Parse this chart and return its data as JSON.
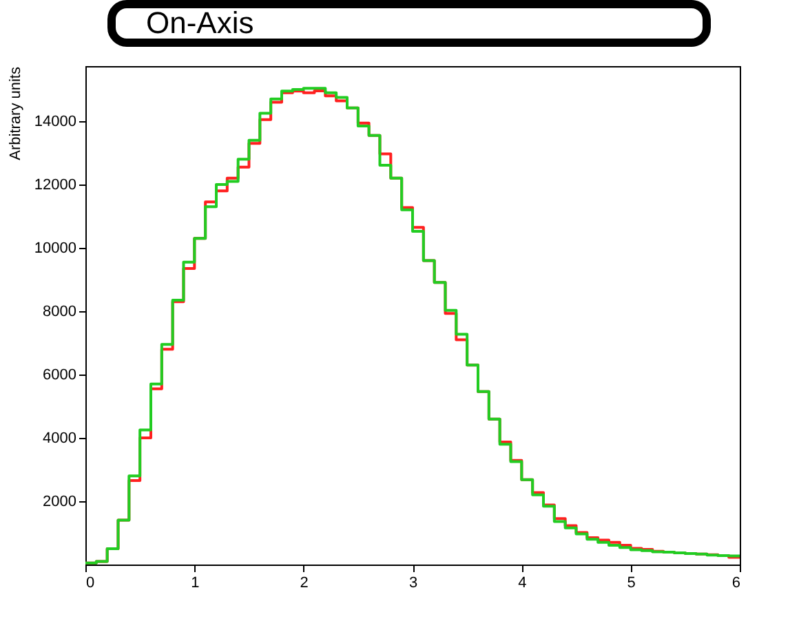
{
  "chart_data": {
    "type": "histogram",
    "title": "On-Axis",
    "ylabel": "Arbitrary units",
    "bins": [
      0,
      0.1,
      0.2,
      0.3,
      0.4,
      0.5,
      0.6,
      0.7,
      0.8,
      0.9,
      1,
      1.1,
      1.2,
      1.3,
      1.4,
      1.5,
      1.6,
      1.7,
      1.8,
      1.9,
      2,
      2.1,
      2.2,
      2.3,
      2.4,
      2.5,
      2.6,
      2.7,
      2.8,
      2.9,
      3,
      3.1,
      3.2,
      3.3,
      3.4,
      3.5,
      3.6,
      3.7,
      3.8,
      3.9,
      4,
      4.1,
      4.2,
      4.3,
      4.4,
      4.5,
      4.6,
      4.7,
      4.8,
      4.9,
      5,
      5.1,
      5.2,
      5.3,
      5.4,
      5.5,
      5.6,
      5.7,
      5.8,
      5.9,
      6
    ],
    "series": [
      {
        "color": "#ff2020",
        "values": [
          50,
          100,
          500,
          1400,
          2650,
          4000,
          5550,
          6800,
          8300,
          9350,
          10300,
          11450,
          11800,
          12200,
          12550,
          13300,
          14050,
          14600,
          14900,
          14950,
          14900,
          14960,
          14800,
          14640,
          14420,
          13940,
          13550,
          12970,
          12200,
          11270,
          10650,
          9600,
          8910,
          7930,
          7100,
          6300,
          5460,
          4590,
          3870,
          3290,
          2680,
          2270,
          1880,
          1450,
          1230,
          1010,
          850,
          770,
          700,
          610,
          510,
          480,
          420,
          390,
          370,
          350,
          330,
          310,
          280,
          230
        ]
      },
      {
        "color": "#22cc22",
        "values": [
          50,
          100,
          500,
          1400,
          2800,
          4250,
          5700,
          6950,
          8350,
          9550,
          10300,
          11300,
          12000,
          12100,
          12800,
          13400,
          14250,
          14700,
          14950,
          15000,
          15040,
          15040,
          14900,
          14750,
          14420,
          13850,
          13550,
          12610,
          12200,
          11200,
          10520,
          9600,
          8910,
          8030,
          7270,
          6300,
          5460,
          4590,
          3800,
          3250,
          2680,
          2200,
          1840,
          1360,
          1160,
          970,
          800,
          700,
          610,
          540,
          470,
          440,
          400,
          390,
          370,
          350,
          330,
          300,
          280,
          270
        ]
      }
    ],
    "xlim": [
      0,
      6
    ],
    "xticks": [
      0,
      1,
      2,
      3,
      4,
      5,
      6
    ],
    "ylim": [
      0,
      15740
    ],
    "yticks": [
      2000,
      4000,
      6000,
      8000,
      10000,
      12000,
      14000
    ]
  }
}
